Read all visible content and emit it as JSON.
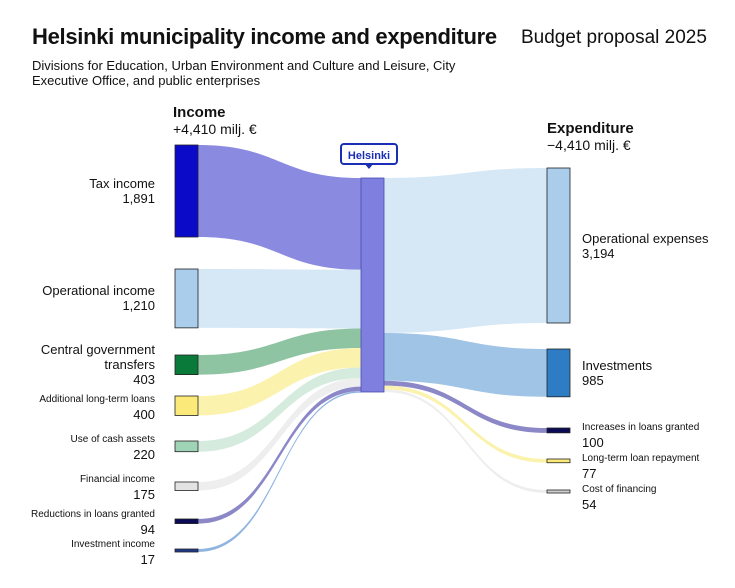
{
  "title": "Helsinki municipality income and expenditure",
  "budget_label": "Budget proposal 2025",
  "subtitle": "Divisions for Education, Urban Environment and Culture and Leisure, City Executive Office, and public enterprises",
  "income": {
    "heading": "Income",
    "total": "+4,410 milj. €"
  },
  "expenditure": {
    "heading": "Expenditure",
    "total": "−4,410 milj. €"
  },
  "center_label": "Helsinki",
  "sources": [
    {
      "name": "Tax income",
      "value": 1891,
      "value_label": "1,891",
      "node_color": "#0a0ac8",
      "flow_color": "#8a8ae0"
    },
    {
      "name": "Operational income",
      "value": 1210,
      "value_label": "1,210",
      "node_color": "#a9cdeb",
      "flow_color": "#d6e7f6"
    },
    {
      "name": "Central government transfers",
      "value": 403,
      "value_label": "403",
      "node_color": "#0a7a3a",
      "flow_color": "#8fc4a3"
    },
    {
      "name": "Additional long-term loans",
      "value": 400,
      "value_label": "400",
      "node_color": "#fbe97a",
      "flow_color": "#fbf2ad"
    },
    {
      "name": "Use of cash assets",
      "value": 220,
      "value_label": "220",
      "node_color": "#9fd3b5",
      "flow_color": "#d5ebdd"
    },
    {
      "name": "Financial income",
      "value": 175,
      "value_label": "175",
      "node_color": "#e3e3e3",
      "flow_color": "#eeeeee"
    },
    {
      "name": "Reductions in loans granted",
      "value": 94,
      "value_label": "94",
      "node_color": "#0b0b55",
      "flow_color": "#8c88c8"
    },
    {
      "name": "Investment income",
      "value": 17,
      "value_label": "17",
      "node_color": "#1f3a8a",
      "flow_color": "#8fb4e0"
    }
  ],
  "targets": [
    {
      "name": "Operational expenses",
      "value": 3194,
      "value_label": "3,194",
      "node_color": "#a9cdeb",
      "flow_color": "#d6e7f6"
    },
    {
      "name": "Investments",
      "value": 985,
      "value_label": "985",
      "node_color": "#2e7cc4",
      "flow_color": "#9fc4e6"
    },
    {
      "name": "Increases in loans granted",
      "value": 100,
      "value_label": "100",
      "node_color": "#0b0b55",
      "flow_color": "#8c88c8"
    },
    {
      "name": "Long-term loan repayment",
      "value": 77,
      "value_label": "77",
      "node_color": "#fbe97a",
      "flow_color": "#fbf2ad"
    },
    {
      "name": "Cost of financing",
      "value": 54,
      "value_label": "54",
      "node_color": "#cfcfcf",
      "flow_color": "#eeeeee"
    }
  ],
  "center_color": "#7f7fe0"
}
